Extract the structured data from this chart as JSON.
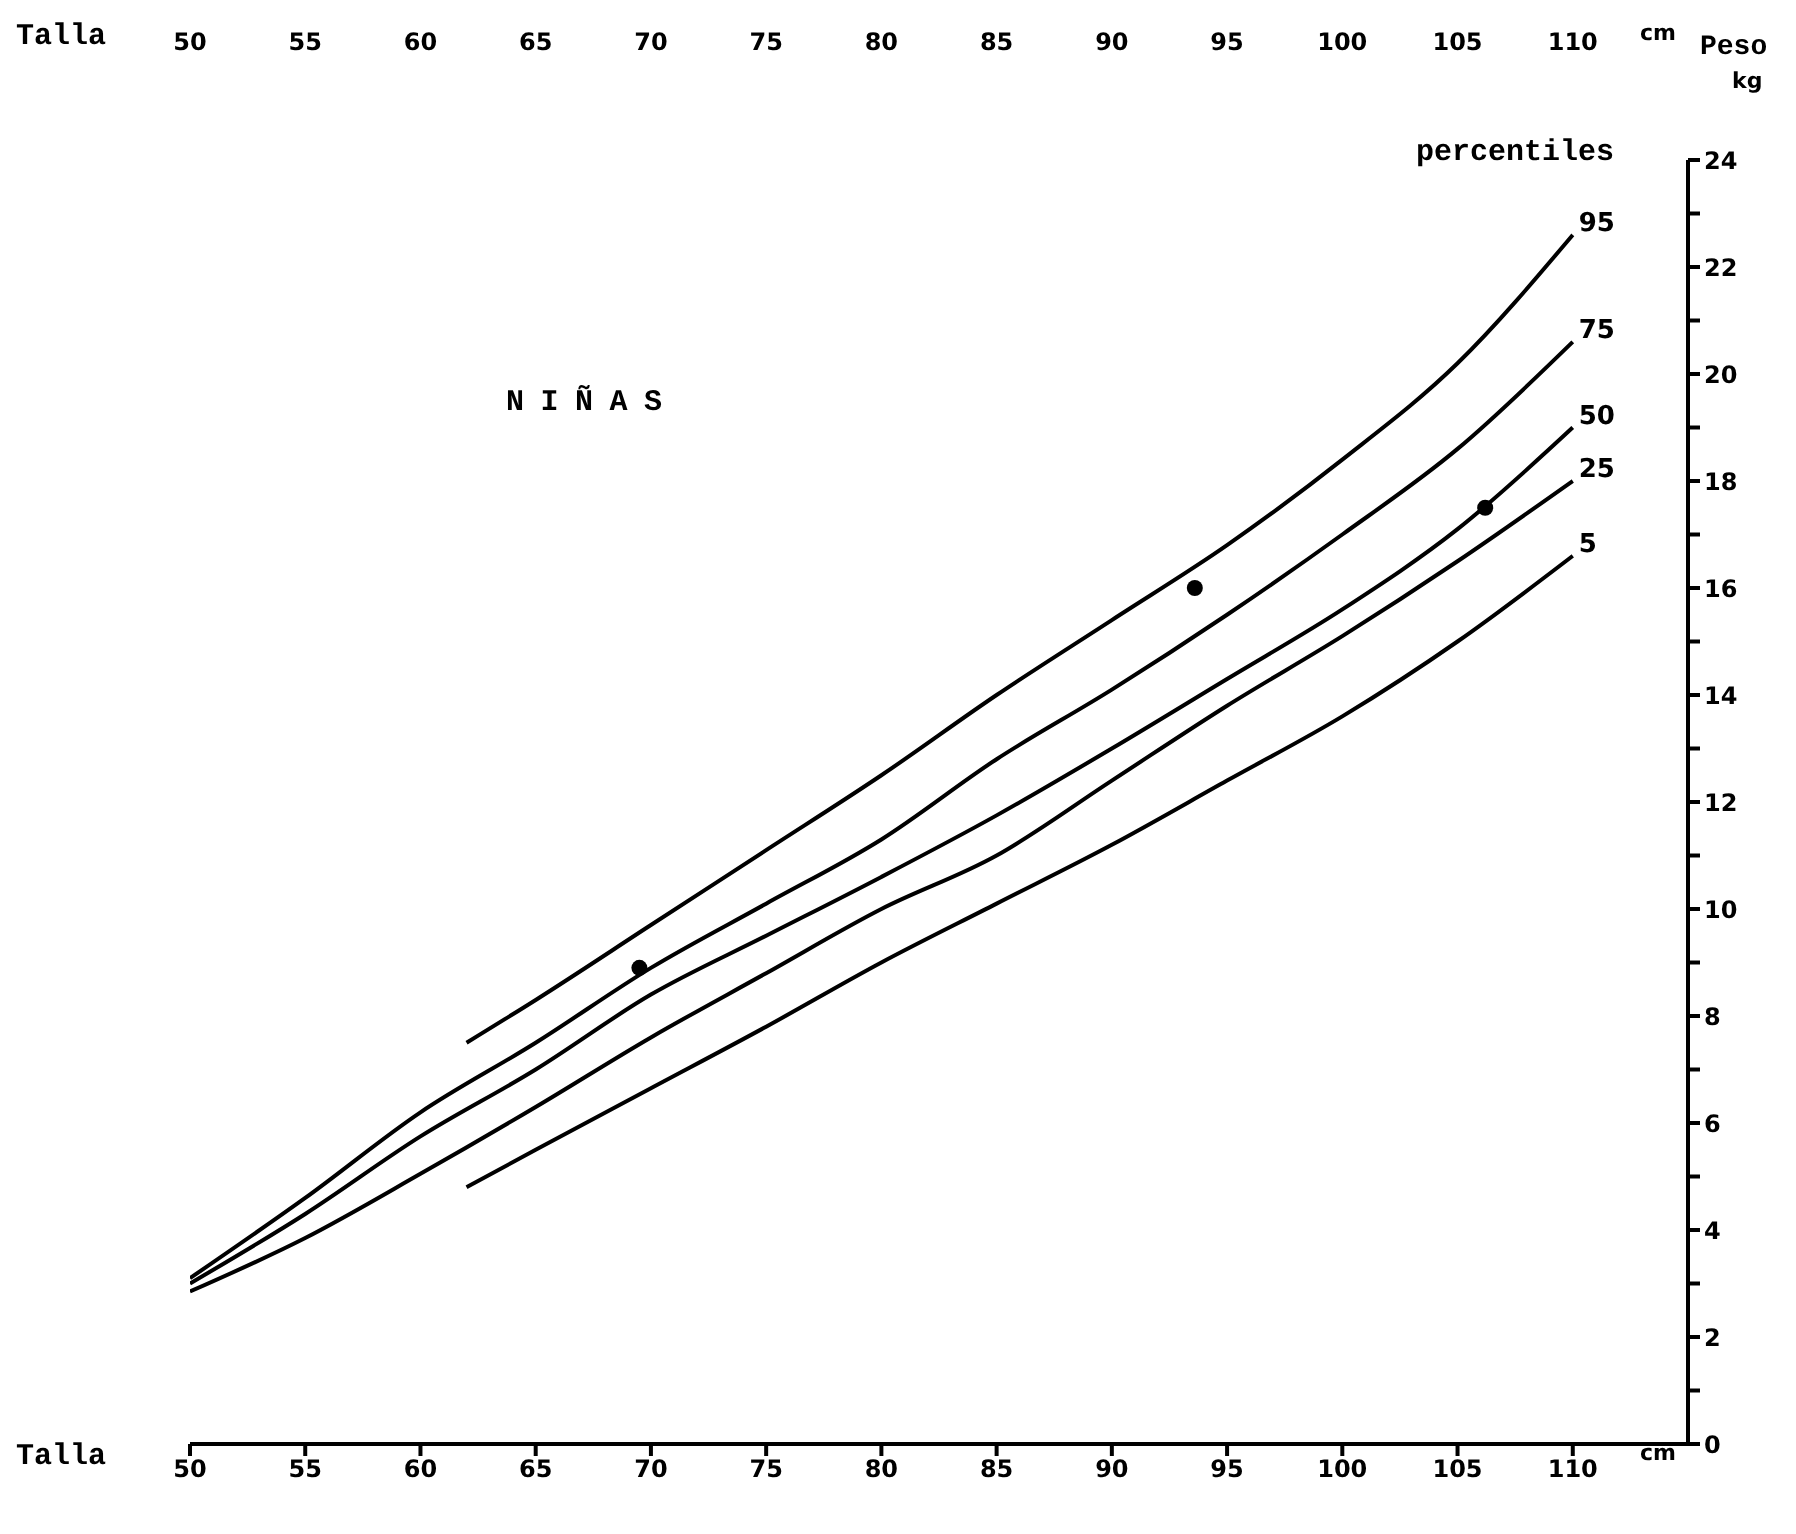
{
  "chart_data": {
    "type": "line",
    "title": "NIÑAS",
    "legend_title": "percentiles",
    "xlabel": "Talla",
    "x2label": "Talla",
    "ylabel": "Peso",
    "annotations": [
      "cm",
      "kg",
      "cm"
    ],
    "xlim": [
      50,
      115
    ],
    "xticks": [
      50,
      55,
      60,
      65,
      70,
      75,
      80,
      85,
      90,
      95,
      100,
      105,
      110
    ],
    "x2lim": [
      50,
      115
    ],
    "x2ticks": [
      50,
      55,
      60,
      65,
      70,
      75,
      80,
      85,
      90,
      95,
      100,
      105,
      110
    ],
    "ylim": [
      0,
      24
    ],
    "yticks": [
      0,
      {
        "value": 1,
        "label": null
      },
      2,
      {
        "value": 3,
        "label": null
      },
      4,
      {
        "value": 5,
        "label": null
      },
      6,
      {
        "value": 7,
        "label": null
      },
      8,
      {
        "value": 9,
        "label": null
      },
      10,
      {
        "value": 11,
        "label": null
      },
      12,
      {
        "value": 13,
        "label": null
      },
      14,
      {
        "value": 15,
        "label": null
      },
      16,
      {
        "value": 17,
        "label": null
      },
      18,
      {
        "value": 19,
        "label": null
      },
      20,
      {
        "value": 21,
        "label": null
      },
      22,
      {
        "value": 23,
        "label": null
      },
      24
    ],
    "grid": false,
    "marker": "none",
    "line_style": "solid",
    "series": [
      {
        "name": "95",
        "color": "#000000",
        "x": [
          62,
          65,
          70,
          75,
          80,
          85,
          90,
          95,
          100,
          105,
          110
        ],
        "values": [
          7.5,
          8.3,
          9.7,
          11.1,
          12.5,
          14.0,
          15.4,
          16.8,
          18.4,
          20.2,
          22.6
        ]
      },
      {
        "name": "75",
        "color": "#000000",
        "x": [
          50,
          55,
          60,
          65,
          70,
          75,
          80,
          85,
          90,
          95,
          100,
          105,
          110
        ],
        "values": [
          3.1,
          4.6,
          6.2,
          7.5,
          8.9,
          10.1,
          11.3,
          12.8,
          14.1,
          15.5,
          17.0,
          18.6,
          20.6
        ]
      },
      {
        "name": "50",
        "color": "#000000",
        "x": [
          50,
          55,
          60,
          65,
          70,
          75,
          80,
          85,
          90,
          95,
          100,
          105,
          110
        ],
        "values": [
          3.0,
          4.3,
          5.75,
          7.0,
          8.4,
          9.5,
          10.6,
          11.75,
          13.0,
          14.3,
          15.6,
          17.1,
          19.0
        ]
      },
      {
        "name": "25",
        "color": "#000000",
        "x": [
          50,
          55,
          60,
          65,
          70,
          75,
          80,
          85,
          90,
          95,
          100,
          105,
          110
        ],
        "values": [
          2.85,
          3.85,
          5.05,
          6.3,
          7.6,
          8.8,
          10.0,
          11.0,
          12.4,
          13.8,
          15.1,
          16.5,
          18.0
        ]
      },
      {
        "name": "5",
        "color": "#000000",
        "x": [
          62,
          65,
          70,
          75,
          80,
          85,
          90,
          95,
          100,
          105,
          110
        ],
        "values": [
          4.8,
          5.5,
          6.65,
          7.8,
          9.0,
          10.1,
          11.2,
          12.4,
          13.6,
          15.0,
          16.6
        ]
      },
      {
        "type": "scatter",
        "color": "#000000",
        "marker": "circle",
        "x": [
          69.5,
          93.6,
          106.2
        ],
        "values": [
          8.9,
          16.0,
          17.5
        ]
      }
    ]
  }
}
